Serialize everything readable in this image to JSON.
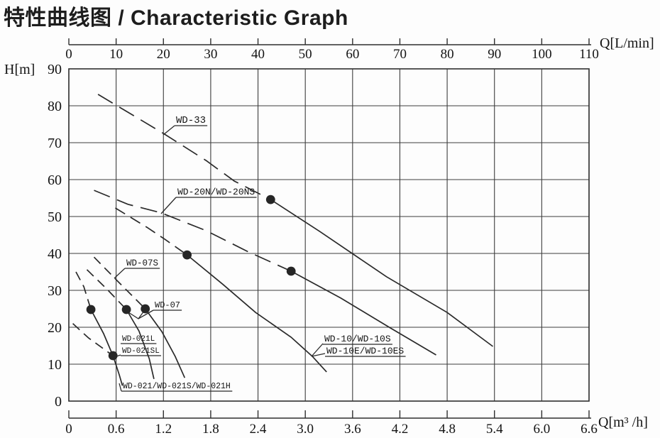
{
  "page": {
    "title": "特性曲线图 / Characteristic Graph",
    "background": "#fdfdfd"
  },
  "colors": {
    "curve": "#2a2a2a",
    "grid": "#3d3d3d",
    "border": "#2f2f2f",
    "ruler": "#2f2f2f",
    "text": "#141414",
    "dot": "#262626"
  },
  "chart_data": {
    "type": "line",
    "title": "特性曲线图 / Characteristic Graph",
    "grid": {
      "visible": true,
      "x_step": 0.6,
      "y_step": 10
    },
    "axes": {
      "top": {
        "label": "Q[L/min]",
        "range": [
          0,
          110
        ],
        "ticks": [
          0,
          10,
          20,
          30,
          40,
          50,
          60,
          70,
          80,
          90,
          100,
          110
        ]
      },
      "left": {
        "label": "H[m]",
        "range": [
          0,
          90
        ],
        "ticks": [
          90,
          80,
          70,
          60,
          50,
          40,
          30,
          20,
          10,
          0
        ]
      },
      "bottom": {
        "label": "Q[m³ /h]",
        "range": [
          0,
          6.6
        ],
        "ticks": [
          "0",
          "0.6",
          "1.2",
          "1.8",
          "2.4",
          "3.0",
          "3.6",
          "4.2",
          "4.8",
          "5.4",
          "6.0",
          "6.6"
        ]
      }
    },
    "series": [
      {
        "name": "WD-33",
        "dashed": [
          [
            0.37,
            83.1
          ],
          [
            1.2,
            72.5
          ],
          [
            1.74,
            65.2
          ],
          [
            2.1,
            59.6
          ],
          [
            2.56,
            54.6
          ]
        ],
        "solid": [
          [
            2.56,
            54.6
          ],
          [
            3.18,
            46.0
          ],
          [
            4.03,
            33.7
          ],
          [
            4.8,
            24.0
          ],
          [
            5.38,
            14.8
          ]
        ],
        "rated_point": [
          2.56,
          54.6
        ],
        "dash_pattern": "24 11"
      },
      {
        "name": "WD-20N/WD-20NS",
        "dashed": [
          [
            0.32,
            57.1
          ],
          [
            0.75,
            53.3
          ],
          [
            1.17,
            51.0
          ],
          [
            1.74,
            46.2
          ],
          [
            2.28,
            40.4
          ],
          [
            2.82,
            35.2
          ]
        ],
        "solid": [
          [
            2.82,
            35.2
          ],
          [
            3.45,
            27.9
          ],
          [
            4.08,
            19.8
          ],
          [
            4.66,
            12.5
          ]
        ],
        "rated_point": [
          2.82,
          35.2
        ],
        "dash_pattern": "24 11"
      },
      {
        "name": "WD-10/WD-10S WD-10E/WD-10ES",
        "dashed": [
          [
            0.59,
            52.3
          ],
          [
            0.99,
            47.1
          ],
          [
            1.22,
            43.8
          ],
          [
            1.5,
            39.6
          ]
        ],
        "solid": [
          [
            1.5,
            39.6
          ],
          [
            1.95,
            31.7
          ],
          [
            2.37,
            24.0
          ],
          [
            2.82,
            17.3
          ],
          [
            3.09,
            12.1
          ],
          [
            3.27,
            7.9
          ]
        ],
        "rated_point": [
          1.5,
          39.6
        ],
        "dash_pattern": "16 9"
      },
      {
        "name": "WD-07S",
        "dashed": [
          [
            0.23,
            35.6
          ],
          [
            0.48,
            30.4
          ],
          [
            0.73,
            24.8
          ]
        ],
        "solid": [
          [
            0.73,
            24.8
          ],
          [
            0.89,
            19.0
          ],
          [
            1.02,
            11.5
          ],
          [
            1.08,
            6.0
          ]
        ],
        "rated_point": [
          0.73,
          24.8
        ],
        "dash_pattern": "13 8"
      },
      {
        "name": "WD-07",
        "dashed": [
          [
            0.32,
            39.0
          ],
          [
            0.61,
            32.7
          ],
          [
            0.97,
            25.0
          ]
        ],
        "solid": [
          [
            0.97,
            25.0
          ],
          [
            1.18,
            18.8
          ],
          [
            1.35,
            12.1
          ],
          [
            1.47,
            6.3
          ]
        ],
        "rated_point": [
          0.97,
          25.0
        ],
        "dash_pattern": "13 8"
      },
      {
        "name": "WD-021/WD-021S/WD-021H",
        "dashed": [
          [
            0.09,
            35.0
          ],
          [
            0.19,
            31.0
          ],
          [
            0.28,
            24.8
          ]
        ],
        "solid": [
          [
            0.28,
            24.8
          ],
          [
            0.44,
            18.3
          ],
          [
            0.56,
            12.3
          ],
          [
            0.64,
            7.1
          ],
          [
            0.68,
            4.2
          ]
        ],
        "rated_point": [
          0.28,
          24.8
        ],
        "dash_pattern": "13 8"
      },
      {
        "name": "WD-021L/WD-021SL",
        "dashed": [
          [
            0.05,
            21.0
          ],
          [
            0.25,
            17.1
          ],
          [
            0.56,
            12.3
          ]
        ],
        "solid": [],
        "rated_point": [
          0.56,
          12.3
        ],
        "dash_pattern": "13 8"
      }
    ],
    "rated_points": [
      [
        2.56,
        54.6
      ],
      [
        2.82,
        35.2
      ],
      [
        1.5,
        39.6
      ],
      [
        0.73,
        24.8
      ],
      [
        0.97,
        25.0
      ],
      [
        0.28,
        24.8
      ],
      [
        0.56,
        12.3
      ]
    ],
    "annotations": [
      {
        "id": "label-wd-33",
        "size": 14,
        "lines": [
          {
            "text": "WD-33",
            "x": 248,
            "baseline": 173
          }
        ],
        "leader": [
          [
            [
              246,
              177
            ],
            [
              230,
              190
            ]
          ]
        ]
      },
      {
        "id": "label-wd-20n",
        "size": 13,
        "lines": [
          {
            "text": "WD-20N/WD-20NS",
            "x": 250,
            "baseline": 274
          }
        ],
        "leader": [
          [
            [
              248,
              278
            ],
            [
              227,
              301
            ]
          ]
        ]
      },
      {
        "id": "label-wd-07s",
        "size": 12.5,
        "lines": [
          {
            "text": "WD-07S",
            "x": 178,
            "baseline": 374
          }
        ],
        "leader": [
          [
            [
              176,
              378
            ],
            [
              161,
              392
            ]
          ]
        ]
      },
      {
        "id": "label-wd-07",
        "size": 12,
        "lines": [
          {
            "text": "WD-07",
            "x": 218,
            "baseline": 433
          }
        ],
        "leader": [
          [
            [
              216,
              437
            ],
            [
              195,
              449
            ],
            [
              181,
              440
            ]
          ],
          [
            [
              195,
              449
            ],
            [
              203,
              438
            ]
          ]
        ]
      },
      {
        "id": "label-wd-021l",
        "size": 11,
        "lines": [
          {
            "text": "WD-021L",
            "x": 172,
            "baseline": 480
          },
          {
            "text": "WD-021SL",
            "x": 172,
            "baseline": 497
          }
        ],
        "leader": [
          [
            [
              170,
              500
            ],
            [
              161,
              503
            ]
          ]
        ]
      },
      {
        "id": "label-wd-021",
        "size": 11.5,
        "lines": [
          {
            "text": "WD-021/WD-021S/WD-021H",
            "x": 173,
            "baseline": 547
          }
        ],
        "leader": [
          [
            [
              171,
              551
            ],
            [
              168,
              540
            ]
          ]
        ]
      },
      {
        "id": "label-wd-10",
        "size": 13,
        "lines": [
          {
            "text": "WD-10/WD-10S",
            "x": 457,
            "baseline": 481
          },
          {
            "text": "WD-10E/WD-10ES",
            "x": 460,
            "baseline": 498
          }
        ],
        "leader": [
          [
            [
              455,
              484
            ],
            [
              439,
              502
            ]
          ],
          [
            [
              458,
              498
            ],
            [
              439,
              502
            ]
          ]
        ]
      }
    ]
  }
}
